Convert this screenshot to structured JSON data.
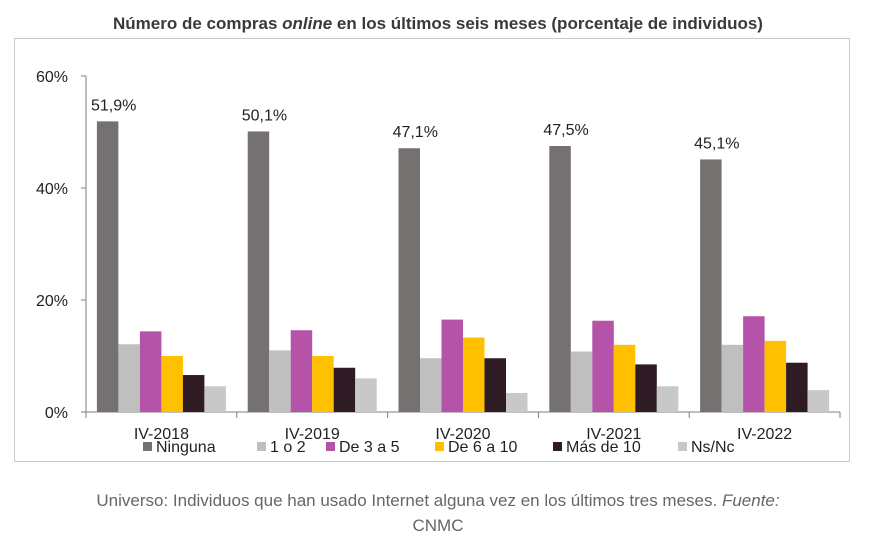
{
  "title": {
    "prefix": "Número de compras ",
    "emphasis": "online",
    "suffix": " en los últimos seis meses (porcentaje de individuos)"
  },
  "caption": {
    "text": "Universo: Individuos que han usado Internet alguna vez en los últimos tres meses. ",
    "source_label": "Fuente:",
    "source_name": "CNMC"
  },
  "chart_data": {
    "type": "bar",
    "categories": [
      "IV-2018",
      "IV-2019",
      "IV-2020",
      "IV-2021",
      "IV-2022"
    ],
    "ylim": [
      0,
      60
    ],
    "yticks": [
      0,
      20,
      40,
      60
    ],
    "ytick_labels": [
      "0%",
      "20%",
      "40%",
      "60%"
    ],
    "grid": false,
    "legend_position": "bottom",
    "series": [
      {
        "name": "Ninguna",
        "color": "#767171",
        "values": [
          51.9,
          50.1,
          47.1,
          47.5,
          45.1
        ]
      },
      {
        "name": "1 o 2",
        "color": "#bfbfbf",
        "values": [
          12.1,
          11.0,
          9.6,
          10.8,
          12.0
        ]
      },
      {
        "name": "De 3 a 5",
        "color": "#b453a8",
        "values": [
          14.4,
          14.6,
          16.5,
          16.3,
          17.1
        ]
      },
      {
        "name": "De 6 a 10",
        "color": "#ffc000",
        "values": [
          10.0,
          10.0,
          13.3,
          12.0,
          12.7
        ]
      },
      {
        "name": "Más de 10",
        "color": "#2f1b24",
        "values": [
          6.6,
          7.9,
          9.6,
          8.5,
          8.8
        ]
      },
      {
        "name": "Ns/Nc",
        "color": "#c8c8c8",
        "values": [
          4.6,
          6.0,
          3.4,
          4.6,
          3.9
        ]
      }
    ],
    "data_labels": [
      "51,9%",
      "50,1%",
      "47,1%",
      "47,5%",
      "45,1%"
    ]
  }
}
